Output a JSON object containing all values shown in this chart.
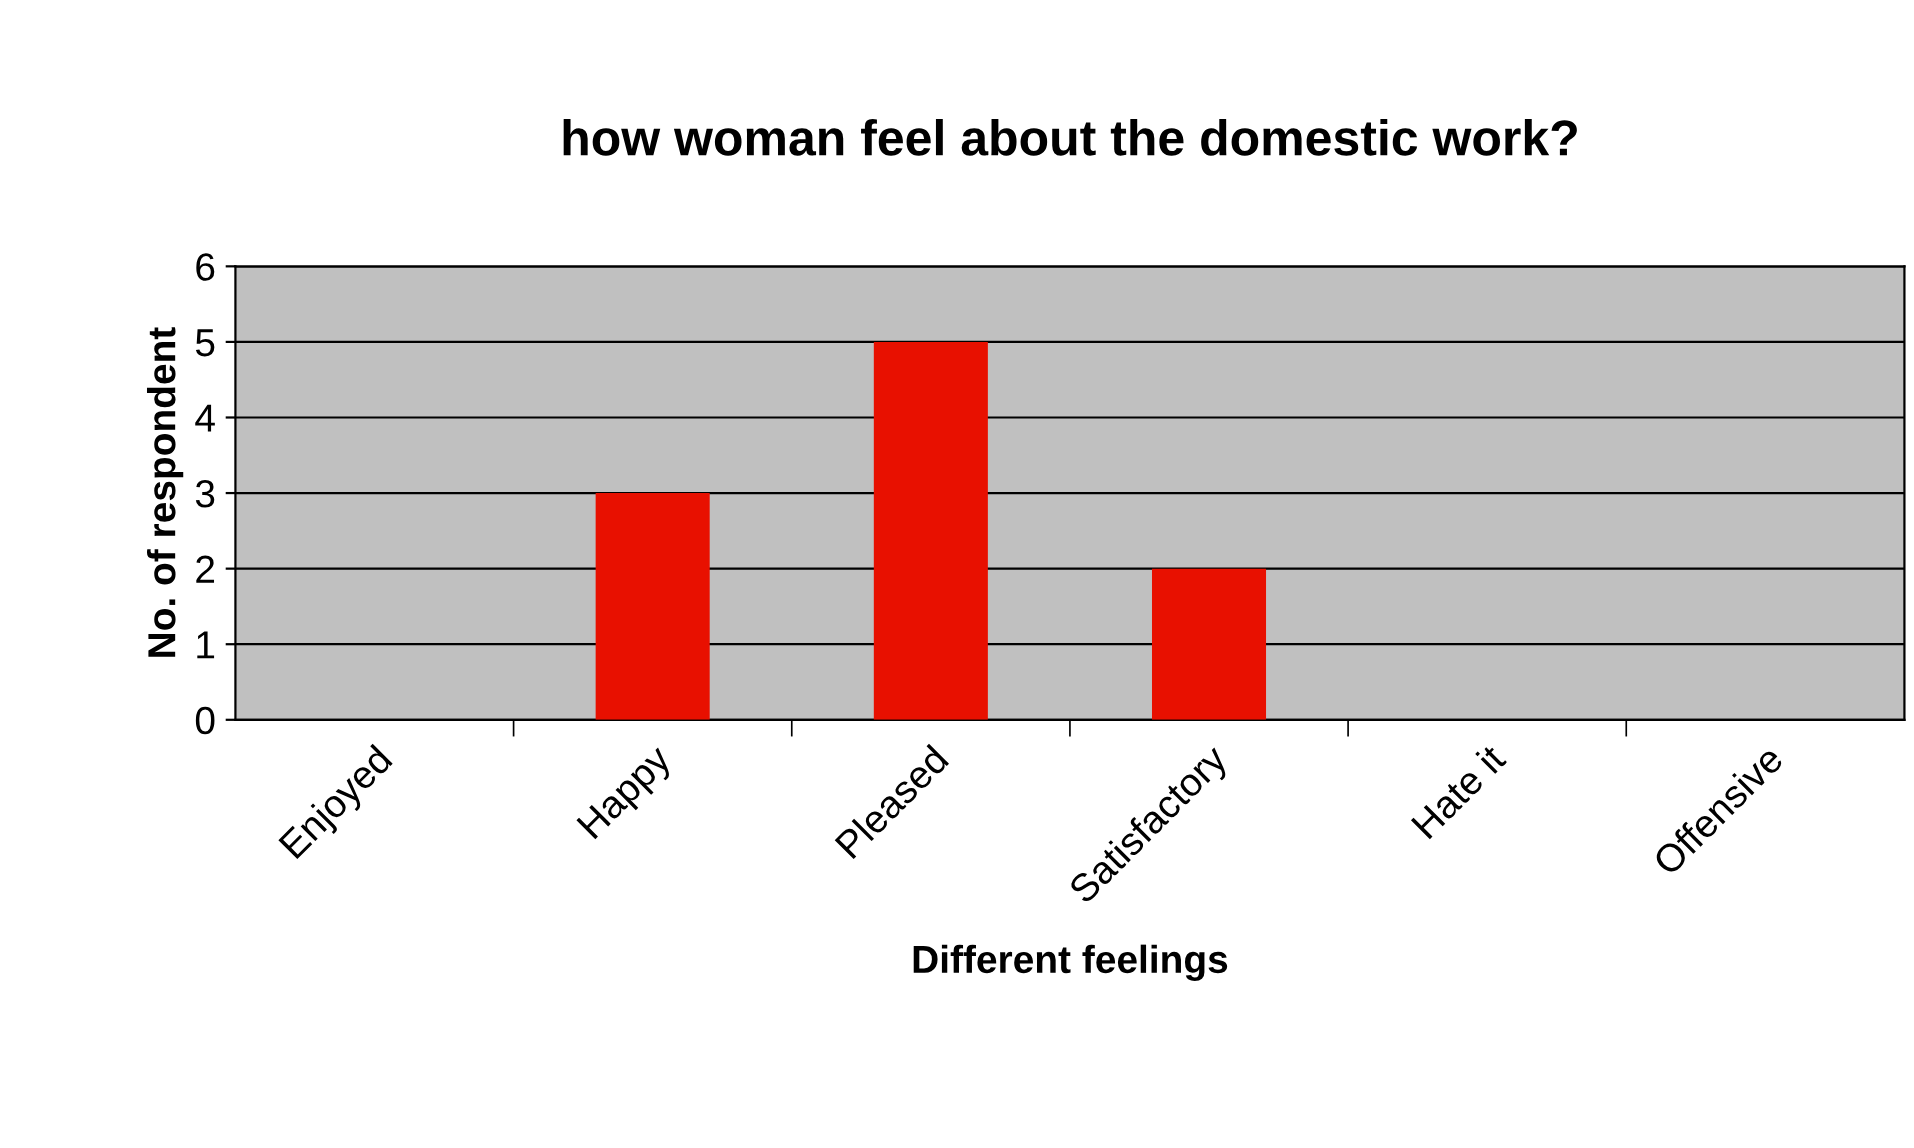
{
  "chart_data": {
    "type": "bar",
    "title": "how woman feel about the domestic work?",
    "xlabel": "Different feelings",
    "ylabel": "No. of respondent",
    "categories": [
      "Enjoyed",
      "Happy",
      "Pleased",
      "Satisfactory",
      "Hate it",
      "Offensive"
    ],
    "values": [
      0,
      3,
      5,
      2,
      0,
      0
    ],
    "color": "#e81000",
    "ylim": [
      0,
      6
    ],
    "yticks": [
      0,
      1,
      2,
      3,
      4,
      5,
      6
    ],
    "grid": "y",
    "legend": false
  }
}
